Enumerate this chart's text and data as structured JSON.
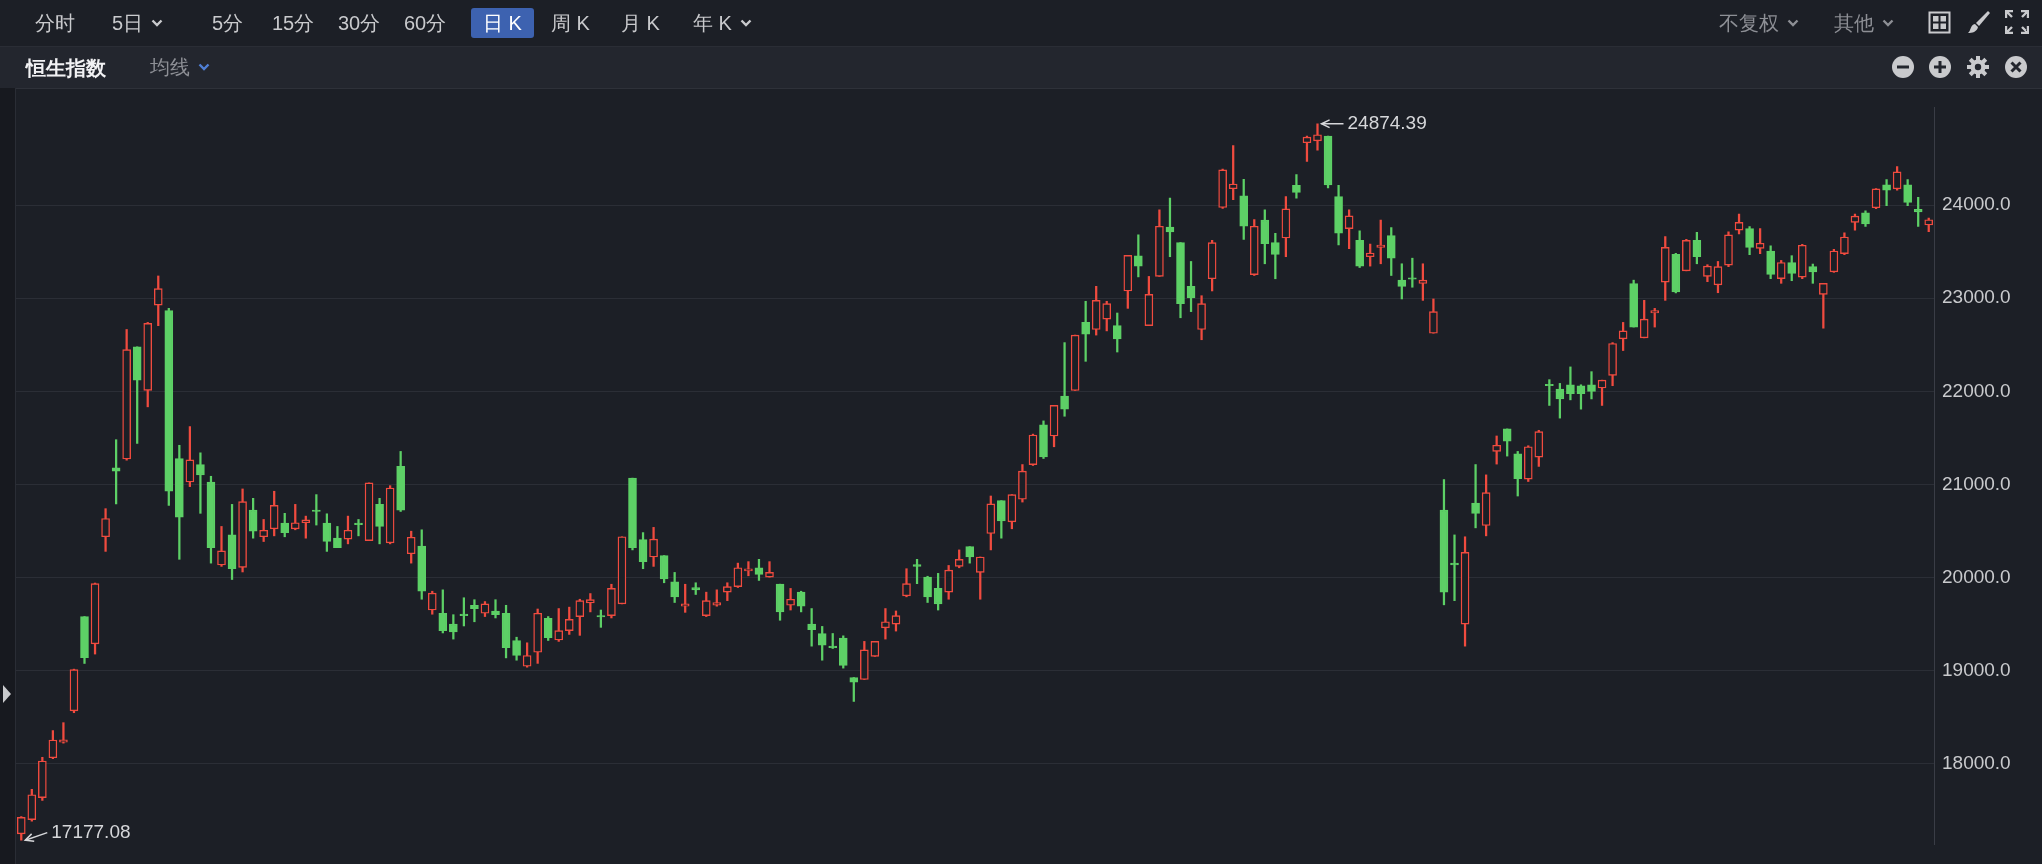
{
  "chart_data": {
    "type": "candlestick",
    "title": "恒生指数",
    "categories": [
      null,
      null,
      null,
      null,
      null,
      null,
      null,
      null,
      null,
      null,
      null,
      null,
      null,
      null,
      null,
      null,
      null,
      null,
      null,
      null,
      null,
      null,
      null,
      null,
      null,
      null,
      null,
      null,
      null,
      null,
      null,
      null,
      null,
      null,
      null,
      null,
      null,
      null,
      null,
      null,
      null,
      null,
      null,
      null,
      null,
      null,
      null,
      null,
      null,
      null,
      null,
      null,
      null,
      null,
      null,
      null,
      null,
      null,
      null,
      null,
      null,
      null,
      null,
      null,
      null,
      null,
      null,
      null,
      null,
      null,
      null,
      null,
      null,
      null,
      null,
      null,
      null,
      null,
      null,
      null,
      null,
      null,
      null,
      null,
      null,
      null,
      null,
      null,
      null,
      null,
      null,
      null,
      null,
      null,
      null,
      null,
      null,
      null,
      null,
      null,
      null,
      null,
      null,
      null,
      null,
      null,
      null,
      null,
      null,
      null,
      null,
      null,
      null,
      null,
      null,
      null,
      null,
      null,
      null,
      null,
      null,
      null,
      null,
      null,
      null,
      null,
      null,
      null,
      null,
      null,
      null,
      null,
      null,
      null,
      null,
      null,
      null,
      null,
      null,
      null,
      null,
      null,
      null,
      null,
      null,
      null,
      null,
      null,
      null,
      null,
      null,
      null,
      null,
      null,
      null,
      null,
      null,
      null,
      null,
      null,
      null,
      null,
      null,
      null,
      null,
      null,
      null,
      null,
      null,
      null,
      null,
      null,
      null,
      null,
      null,
      null,
      null,
      null,
      null,
      null,
      null,
      null
    ],
    "ohlc": [
      [
        17246,
        17430,
        17177.08,
        17423
      ],
      [
        17398,
        17725,
        17383,
        17665
      ],
      [
        17635,
        18068,
        17604,
        18028
      ],
      [
        18063,
        18355,
        18053,
        18254
      ],
      [
        18230,
        18440,
        18220,
        18255
      ],
      [
        18567,
        19015,
        18547,
        19010
      ],
      [
        19580,
        19580,
        19076,
        19137
      ],
      [
        19287,
        19940,
        19177,
        19933
      ],
      [
        20437,
        20739,
        20280,
        20633
      ],
      [
        21178,
        21480,
        20790,
        21142
      ],
      [
        21273,
        22664,
        21260,
        22448
      ],
      [
        22478,
        22478,
        21440,
        22120
      ],
      [
        22010,
        22740,
        21833,
        22730
      ],
      [
        22926,
        23239,
        22705,
        23103
      ],
      [
        22866,
        22891,
        20774,
        20926
      ],
      [
        21278,
        21420,
        20195,
        20648
      ],
      [
        21026,
        21621,
        20976,
        21263
      ],
      [
        21213,
        21339,
        20689,
        21102
      ],
      [
        21026,
        21087,
        20154,
        20321
      ],
      [
        20134,
        20548,
        20119,
        20285
      ],
      [
        20457,
        20785,
        19978,
        20094
      ],
      [
        20109,
        20951,
        20059,
        20815
      ],
      [
        20724,
        20850,
        20422,
        20497
      ],
      [
        20437,
        20623,
        20386,
        20507
      ],
      [
        20522,
        20926,
        20447,
        20774
      ],
      [
        20583,
        20689,
        20437,
        20482
      ],
      [
        20522,
        20785,
        20512,
        20588
      ],
      [
        20588,
        20659,
        20422,
        20618
      ],
      [
        20724,
        20890,
        20563,
        20709
      ],
      [
        20583,
        20684,
        20280,
        20386
      ],
      [
        20422,
        20548,
        20321,
        20321
      ],
      [
        20412,
        20659,
        20361,
        20507
      ],
      [
        20583,
        20623,
        20447,
        20568
      ],
      [
        20396,
        21016,
        20396,
        21016
      ],
      [
        20785,
        20850,
        20361,
        20548
      ],
      [
        20371,
        20986,
        20361,
        20961
      ],
      [
        21193,
        21354,
        20709,
        20724
      ],
      [
        20255,
        20497,
        20154,
        20432
      ],
      [
        20336,
        20512,
        19766,
        19852
      ],
      [
        19650,
        19852,
        19605,
        19832
      ],
      [
        19615,
        19867,
        19404,
        19429
      ],
      [
        19499,
        19600,
        19338,
        19414
      ],
      [
        19600,
        19782,
        19479,
        19590
      ],
      [
        19701,
        19761,
        19524,
        19666
      ],
      [
        19615,
        19741,
        19580,
        19716
      ],
      [
        19640,
        19761,
        19565,
        19600
      ],
      [
        19615,
        19701,
        19136,
        19247
      ],
      [
        19323,
        19358,
        19111,
        19162
      ],
      [
        19046,
        19298,
        19036,
        19162
      ],
      [
        19197,
        19661,
        19077,
        19615
      ],
      [
        19560,
        19580,
        19323,
        19353
      ],
      [
        19328,
        19666,
        19313,
        19429
      ],
      [
        19429,
        19681,
        19388,
        19550
      ],
      [
        19580,
        19766,
        19378,
        19751
      ],
      [
        19726,
        19827,
        19630,
        19761
      ],
      [
        19590,
        19650,
        19464,
        19575
      ],
      [
        19590,
        19927,
        19565,
        19882
      ],
      [
        19716,
        20437,
        19716,
        20437
      ],
      [
        21067,
        21067,
        20296,
        20321
      ],
      [
        20407,
        20482,
        20094,
        20170
      ],
      [
        20220,
        20538,
        20119,
        20412
      ],
      [
        20235,
        20235,
        19943,
        19983
      ],
      [
        19953,
        20054,
        19731,
        19792
      ],
      [
        19691,
        19927,
        19625,
        19716
      ],
      [
        19892,
        19943,
        19817,
        19867
      ],
      [
        19590,
        19842,
        19580,
        19751
      ],
      [
        19701,
        19867,
        19691,
        19731
      ],
      [
        19842,
        19943,
        19751,
        19902
      ],
      [
        19902,
        20154,
        19892,
        20104
      ],
      [
        20069,
        20170,
        20018,
        20094
      ],
      [
        20104,
        20195,
        19968,
        20033
      ],
      [
        20003,
        20170,
        20003,
        20054
      ],
      [
        19928,
        19928,
        19540,
        19630
      ],
      [
        19701,
        19882,
        19650,
        19766
      ],
      [
        19842,
        19852,
        19630,
        19691
      ],
      [
        19499,
        19666,
        19262,
        19439
      ],
      [
        19398,
        19474,
        19111,
        19272
      ],
      [
        19257,
        19398,
        19237,
        19247
      ],
      [
        19348,
        19373,
        19026,
        19056
      ],
      [
        18925,
        18925,
        18668,
        18874
      ],
      [
        18904,
        19313,
        18904,
        19222
      ],
      [
        19152,
        19313,
        19152,
        19313
      ],
      [
        19459,
        19666,
        19338,
        19524
      ],
      [
        19499,
        19640,
        19424,
        19590
      ],
      [
        19802,
        20094,
        19792,
        19933
      ],
      [
        20139,
        20195,
        19933,
        20119
      ],
      [
        20003,
        20013,
        19731,
        19792
      ],
      [
        19882,
        20044,
        19650,
        19716
      ],
      [
        19842,
        20129,
        19766,
        20079
      ],
      [
        20119,
        20296,
        20104,
        20195
      ],
      [
        20331,
        20331,
        20154,
        20220
      ],
      [
        20054,
        20220,
        19766,
        20220
      ],
      [
        20472,
        20875,
        20296,
        20790
      ],
      [
        20825,
        20825,
        20422,
        20608
      ],
      [
        20598,
        20890,
        20523,
        20890
      ],
      [
        20840,
        21213,
        20810,
        21142
      ],
      [
        21213,
        21540,
        21203,
        21530
      ],
      [
        21641,
        21682,
        21278,
        21294
      ],
      [
        21520,
        21848,
        21404,
        21848
      ],
      [
        21949,
        22523,
        21732,
        21808
      ],
      [
        22009,
        22604,
        22009,
        22604
      ],
      [
        22740,
        22967,
        22322,
        22614
      ],
      [
        22664,
        23128,
        22604,
        22977
      ],
      [
        22775,
        22967,
        22649,
        22942
      ],
      [
        22705,
        22841,
        22422,
        22564
      ],
      [
        23078,
        23461,
        22891,
        23461
      ],
      [
        23456,
        23682,
        23229,
        23345
      ],
      [
        22705,
        23234,
        22705,
        23042
      ],
      [
        23234,
        23950,
        23234,
        23773
      ],
      [
        23763,
        24076,
        23446,
        23713
      ],
      [
        23597,
        23597,
        22790,
        22942
      ],
      [
        23128,
        23395,
        22856,
        23002
      ],
      [
        22664,
        23027,
        22554,
        22942
      ],
      [
        23209,
        23622,
        23078,
        23597
      ],
      [
        23975,
        24388,
        23965,
        24378
      ],
      [
        24176,
        24640,
        24060,
        24227
      ],
      [
        24101,
        24277,
        23632,
        23773
      ],
      [
        23254,
        23844,
        23244,
        23773
      ],
      [
        23839,
        23950,
        23370,
        23587
      ],
      [
        23597,
        23698,
        23209,
        23471
      ],
      [
        23647,
        24091,
        23446,
        23960
      ],
      [
        24212,
        24328,
        24076,
        24136
      ],
      [
        24670,
        24741,
        24469,
        24731
      ],
      [
        24690,
        24874.39,
        24590,
        24756
      ],
      [
        24741,
        24741,
        24186,
        24217
      ],
      [
        24091,
        24212,
        23572,
        23698
      ],
      [
        23748,
        23950,
        23531,
        23884
      ],
      [
        23622,
        23723,
        23330,
        23345
      ],
      [
        23446,
        23582,
        23345,
        23486
      ],
      [
        23546,
        23839,
        23370,
        23572
      ],
      [
        23672,
        23758,
        23244,
        23430
      ],
      [
        23194,
        23370,
        22992,
        23128
      ],
      [
        23219,
        23430,
        23118,
        23204
      ],
      [
        23158,
        23370,
        22977,
        23194
      ],
      [
        22624,
        22992,
        22624,
        22856
      ],
      [
        20724,
        21052,
        19706,
        19842
      ],
      [
        20154,
        20457,
        19751,
        20134
      ],
      [
        19499,
        20437,
        19262,
        20270
      ],
      [
        20800,
        21213,
        20533,
        20689
      ],
      [
        20558,
        21102,
        20447,
        20911
      ],
      [
        21354,
        21520,
        21218,
        21420
      ],
      [
        21596,
        21596,
        21304,
        21465
      ],
      [
        21329,
        21354,
        20875,
        21062
      ],
      [
        21057,
        21415,
        21031,
        21404
      ],
      [
        21293,
        21581,
        21193,
        21566
      ],
      [
        22075,
        22125,
        21848,
        22060
      ],
      [
        22025,
        22085,
        21712,
        21918
      ],
      [
        22070,
        22262,
        21908,
        21974
      ],
      [
        22060,
        22070,
        21808,
        21974
      ],
      [
        22070,
        22211,
        21918,
        21999
      ],
      [
        22035,
        22120,
        21848,
        22120
      ],
      [
        22171,
        22523,
        22060,
        22513
      ],
      [
        22564,
        22740,
        22438,
        22649
      ],
      [
        23158,
        23194,
        22690,
        22690
      ],
      [
        22574,
        22977,
        22574,
        22775
      ],
      [
        22841,
        22891,
        22690,
        22866
      ],
      [
        23173,
        23662,
        22977,
        23546
      ],
      [
        23471,
        23481,
        23057,
        23068
      ],
      [
        23294,
        23632,
        23294,
        23622
      ],
      [
        23622,
        23708,
        23370,
        23446
      ],
      [
        23234,
        23360,
        23178,
        23345
      ],
      [
        23143,
        23395,
        23059,
        23339
      ],
      [
        23356,
        23714,
        23339,
        23681
      ],
      [
        23731,
        23905,
        23692,
        23815
      ],
      [
        23748,
        23770,
        23468,
        23546
      ],
      [
        23535,
        23748,
        23479,
        23591
      ],
      [
        23507,
        23563,
        23210,
        23255
      ],
      [
        23210,
        23406,
        23160,
        23384
      ],
      [
        23384,
        23457,
        23188,
        23266
      ],
      [
        23227,
        23580,
        23210,
        23569
      ],
      [
        23339,
        23367,
        23160,
        23283
      ],
      [
        23042,
        23160,
        22678,
        23160
      ],
      [
        23283,
        23524,
        23278,
        23507
      ],
      [
        23479,
        23703,
        23468,
        23658
      ],
      [
        23815,
        23905,
        23731,
        23882
      ],
      [
        23916,
        23938,
        23770,
        23798
      ],
      [
        23972,
        24179,
        23961,
        24174
      ],
      [
        24218,
        24274,
        23994,
        24162
      ],
      [
        24174,
        24414,
        24162,
        24358
      ],
      [
        24218,
        24274,
        23994,
        24028
      ],
      [
        23955,
        24084,
        23770,
        23927
      ],
      [
        23787,
        23860,
        23714,
        23843
      ]
    ],
    "colors": [
      "#f04b3f",
      "#f04b3f",
      "#f04b3f",
      "#f04b3f",
      "#f04b3f",
      "#f04b3f",
      "#5dd066",
      "#f04b3f",
      "#f04b3f",
      "#5dd066",
      "#f04b3f",
      "#5dd066",
      "#f04b3f",
      "#f04b3f",
      "#5dd066",
      "#5dd066",
      "#f04b3f",
      "#5dd066",
      "#5dd066",
      "#f04b3f",
      "#5dd066",
      "#f04b3f",
      "#5dd066",
      "#f04b3f",
      "#f04b3f",
      "#5dd066",
      "#f04b3f",
      "#f04b3f",
      "#5dd066",
      "#5dd066",
      "#5dd066",
      "#f04b3f",
      "#5dd066",
      "#f04b3f",
      "#5dd066",
      "#f04b3f",
      "#5dd066",
      "#f04b3f",
      "#5dd066",
      "#f04b3f",
      "#5dd066",
      "#5dd066",
      "#5dd066",
      "#5dd066",
      "#f04b3f",
      "#5dd066",
      "#5dd066",
      "#5dd066",
      "#f04b3f",
      "#f04b3f",
      "#5dd066",
      "#f04b3f",
      "#f04b3f",
      "#f04b3f",
      "#f04b3f",
      "#5dd066",
      "#f04b3f",
      "#f04b3f",
      "#5dd066",
      "#5dd066",
      "#f04b3f",
      "#5dd066",
      "#5dd066",
      "#f04b3f",
      "#5dd066",
      "#f04b3f",
      "#f04b3f",
      "#f04b3f",
      "#f04b3f",
      "#f04b3f",
      "#5dd066",
      "#f04b3f",
      "#5dd066",
      "#f04b3f",
      "#5dd066",
      "#5dd066",
      "#5dd066",
      "#5dd066",
      "#5dd066",
      "#5dd066",
      "#f04b3f",
      "#f04b3f",
      "#f04b3f",
      "#f04b3f",
      "#f04b3f",
      "#5dd066",
      "#5dd066",
      "#5dd066",
      "#f04b3f",
      "#f04b3f",
      "#5dd066",
      "#f04b3f",
      "#f04b3f",
      "#5dd066",
      "#f04b3f",
      "#f04b3f",
      "#f04b3f",
      "#5dd066",
      "#f04b3f",
      "#5dd066",
      "#f04b3f",
      "#5dd066",
      "#f04b3f",
      "#f04b3f",
      "#5dd066",
      "#f04b3f",
      "#5dd066",
      "#f04b3f",
      "#f04b3f",
      "#5dd066",
      "#5dd066",
      "#5dd066",
      "#f04b3f",
      "#f04b3f",
      "#f04b3f",
      "#f04b3f",
      "#5dd066",
      "#f04b3f",
      "#5dd066",
      "#5dd066",
      "#f04b3f",
      "#5dd066",
      "#f04b3f",
      "#f04b3f",
      "#5dd066",
      "#5dd066",
      "#f04b3f",
      "#5dd066",
      "#f04b3f",
      "#f04b3f",
      "#5dd066",
      "#5dd066",
      "#5dd066",
      "#f04b3f",
      "#f04b3f",
      "#5dd066",
      "#5dd066",
      "#f04b3f",
      "#5dd066",
      "#f04b3f",
      "#f04b3f",
      "#5dd066",
      "#5dd066",
      "#f04b3f",
      "#f04b3f",
      "#5dd066",
      "#5dd066",
      "#5dd066",
      "#5dd066",
      "#5dd066",
      "#f04b3f",
      "#f04b3f",
      "#f04b3f",
      "#5dd066",
      "#f04b3f",
      "#f04b3f",
      "#f04b3f",
      "#5dd066",
      "#f04b3f",
      "#5dd066",
      "#f04b3f",
      "#f04b3f",
      "#f04b3f",
      "#f04b3f",
      "#5dd066",
      "#f04b3f",
      "#5dd066",
      "#f04b3f",
      "#5dd066",
      "#f04b3f",
      "#5dd066",
      "#f04b3f",
      "#f04b3f",
      "#f04b3f",
      "#f04b3f",
      "#5dd066",
      "#f04b3f",
      "#5dd066",
      "#f04b3f",
      "#5dd066",
      "#5dd066",
      "#f04b3f"
    ],
    "ylim": [
      17130,
      25050
    ],
    "yticks": [
      {
        "value": 18000,
        "label": "18000.0"
      },
      {
        "value": 19000,
        "label": "19000.0"
      },
      {
        "value": 20000,
        "label": "20000.0"
      },
      {
        "value": 21000,
        "label": "21000.0"
      },
      {
        "value": 22000,
        "label": "22000.0"
      },
      {
        "value": 23000,
        "label": "23000.0"
      },
      {
        "value": 24000,
        "label": "24000.0"
      }
    ],
    "grid": "y",
    "tick_labels": "y",
    "annotations": [
      "分时",
      "5日",
      "5分",
      "15分",
      "30分",
      "60分",
      "日 K",
      "周 K",
      "月 K",
      "年 K",
      "不复权",
      "其他",
      "均线",
      "24874.39",
      "17177.08"
    ]
  }
}
